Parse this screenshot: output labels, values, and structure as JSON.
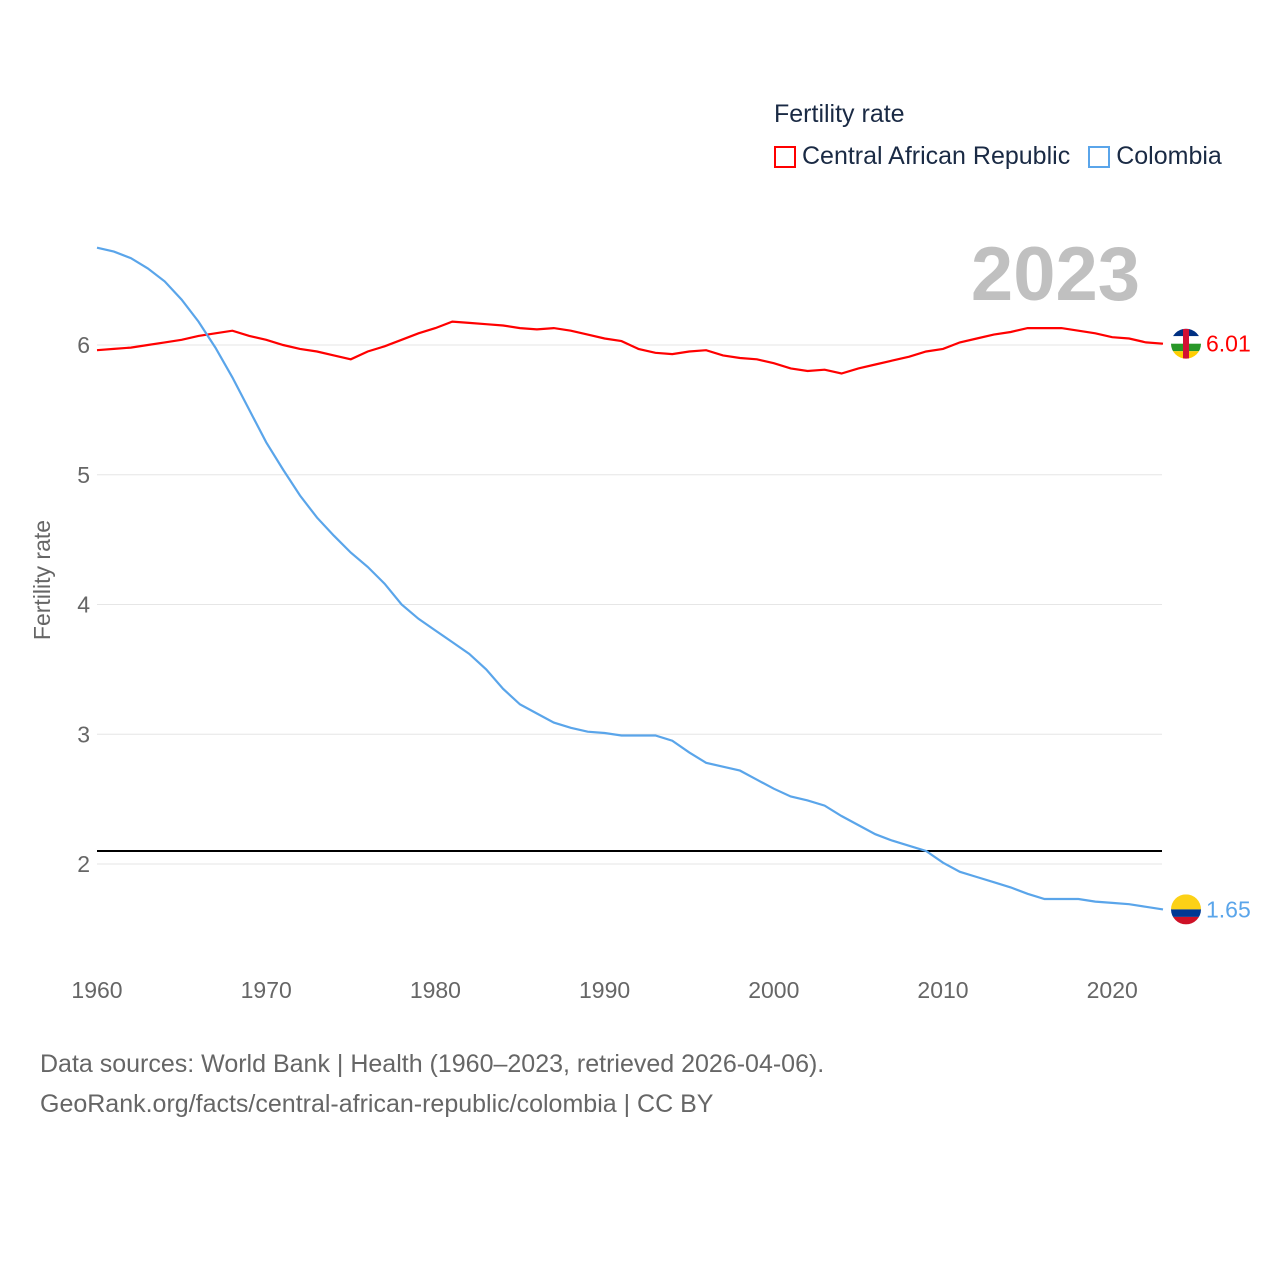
{
  "chart_data": {
    "type": "line",
    "title": "Fertility rate",
    "year_label": "2023",
    "xlabel": "",
    "ylabel": "Fertility rate",
    "xlim": [
      1960,
      2023
    ],
    "ylim": [
      1.4,
      7.0
    ],
    "x_ticks": [
      1960,
      1970,
      1980,
      1990,
      2000,
      2010,
      2020
    ],
    "y_ticks": [
      2,
      3,
      4,
      5,
      6
    ],
    "grid": true,
    "legend_position": "top-right",
    "reference_line": 2.1,
    "x": [
      1960,
      1961,
      1962,
      1963,
      1964,
      1965,
      1966,
      1967,
      1968,
      1969,
      1970,
      1971,
      1972,
      1973,
      1974,
      1975,
      1976,
      1977,
      1978,
      1979,
      1980,
      1981,
      1982,
      1983,
      1984,
      1985,
      1986,
      1987,
      1988,
      1989,
      1990,
      1991,
      1992,
      1993,
      1994,
      1995,
      1996,
      1997,
      1998,
      1999,
      2000,
      2001,
      2002,
      2003,
      2004,
      2005,
      2006,
      2007,
      2008,
      2009,
      2010,
      2011,
      2012,
      2013,
      2014,
      2015,
      2016,
      2017,
      2018,
      2019,
      2020,
      2021,
      2022,
      2023
    ],
    "series": [
      {
        "name": "Central African Republic",
        "color": "#ff0000",
        "end_label": "6.01",
        "values": [
          5.96,
          5.97,
          5.98,
          6.0,
          6.02,
          6.04,
          6.07,
          6.09,
          6.11,
          6.07,
          6.04,
          6.0,
          5.97,
          5.95,
          5.92,
          5.89,
          5.95,
          5.99,
          6.04,
          6.09,
          6.13,
          6.18,
          6.17,
          6.16,
          6.15,
          6.13,
          6.12,
          6.13,
          6.11,
          6.08,
          6.05,
          6.03,
          5.97,
          5.94,
          5.93,
          5.95,
          5.96,
          5.92,
          5.9,
          5.89,
          5.86,
          5.82,
          5.8,
          5.81,
          5.78,
          5.82,
          5.85,
          5.88,
          5.91,
          5.95,
          5.97,
          6.02,
          6.05,
          6.08,
          6.1,
          6.13,
          6.13,
          6.13,
          6.11,
          6.09,
          6.06,
          6.05,
          6.02,
          6.01
        ]
      },
      {
        "name": "Colombia",
        "color": "#5aa5ea",
        "end_label": "1.65",
        "values": [
          6.75,
          6.72,
          6.67,
          6.59,
          6.49,
          6.35,
          6.18,
          5.98,
          5.75,
          5.5,
          5.25,
          5.04,
          4.84,
          4.67,
          4.53,
          4.4,
          4.29,
          4.16,
          4.0,
          3.89,
          3.8,
          3.71,
          3.62,
          3.5,
          3.35,
          3.23,
          3.16,
          3.09,
          3.05,
          3.02,
          3.01,
          2.99,
          2.99,
          2.99,
          2.95,
          2.86,
          2.78,
          2.75,
          2.72,
          2.65,
          2.58,
          2.52,
          2.49,
          2.45,
          2.37,
          2.3,
          2.23,
          2.18,
          2.14,
          2.1,
          2.01,
          1.94,
          1.9,
          1.86,
          1.82,
          1.77,
          1.73,
          1.73,
          1.73,
          1.71,
          1.7,
          1.69,
          1.67,
          1.65
        ]
      }
    ]
  },
  "footer": {
    "line1": "Data sources: World Bank | Health (1960–2023, retrieved 2026-04-06).",
    "line2": "GeoRank.org/facts/central-african-republic/colombia | CC BY"
  }
}
